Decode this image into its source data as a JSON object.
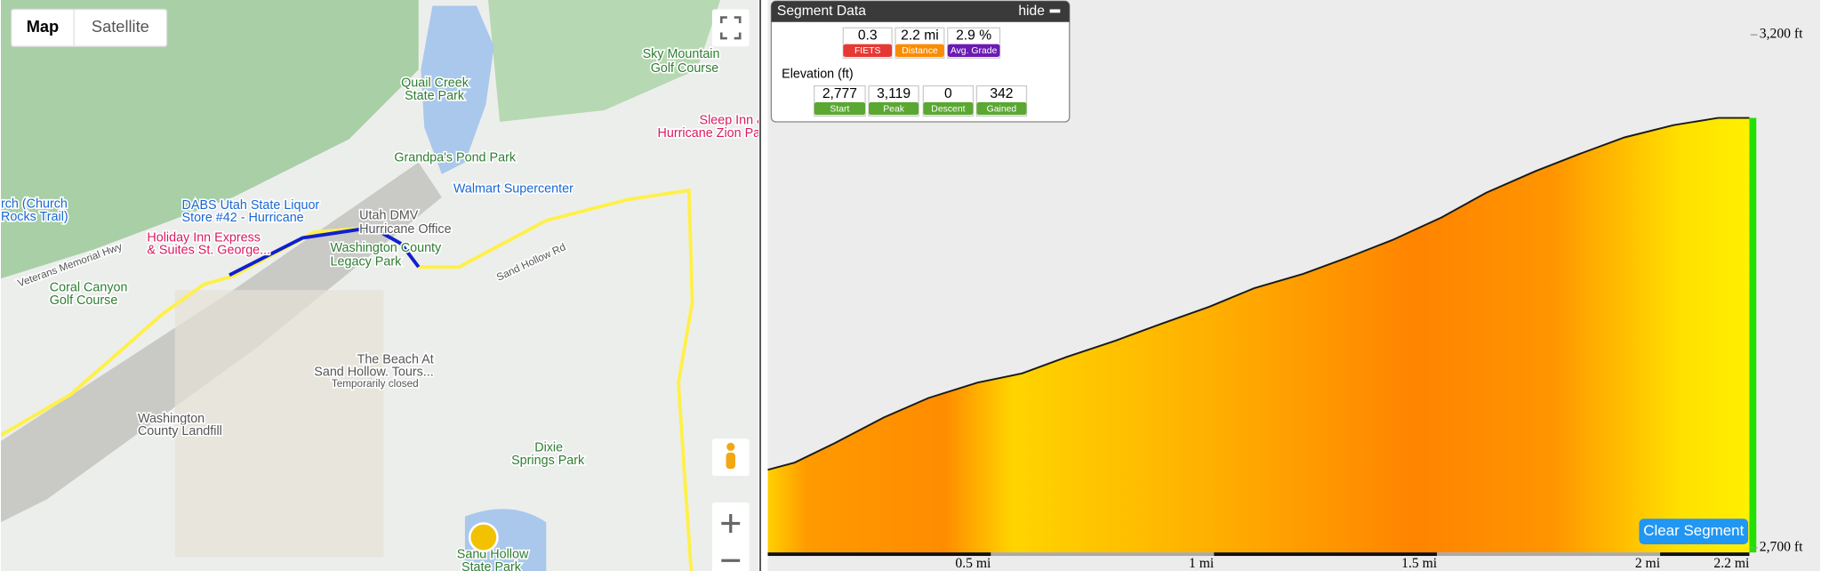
{
  "map": {
    "buttons": [
      "Map",
      "Satellite"
    ],
    "labels": [
      "Sky Mountain",
      "Golf Course",
      "Quail Creek",
      "State Park",
      "Sleep Inn &",
      "Hurricane Zion Pa",
      "Grandpa's Pond Park",
      "Walmart Supercenter",
      "rch (Church",
      "Rocks Trail)",
      "DABS Utah State Liquor",
      "Store #42 - Hurricane",
      "Utah DMV",
      "Hurricane Office",
      "Holiday Inn Express",
      "& Suites St. George...",
      "Washington County",
      "Legacy Park",
      "Coral Canyon",
      "Golf Course",
      "The Beach At",
      "Sand Hollow. Tours...",
      "Temporarily closed",
      "Washington",
      "County Landfill",
      "Dixie",
      "Springs Park",
      "Sand Hollow",
      "State Park",
      "Veterans Memorial Hwy",
      "Sand Hollow Rd"
    ]
  },
  "segment_panel": {
    "title": "Segment Data",
    "hide": "hide",
    "stats": [
      {
        "value": "0.3",
        "label": "FIETS"
      },
      {
        "value": "2.2 mi",
        "label": "Distance"
      },
      {
        "value": "2.9 %",
        "label": "Avg. Grade"
      }
    ],
    "elevation_title": "Elevation (ft)",
    "elevation": [
      {
        "value": "2,777",
        "label": "Start"
      },
      {
        "value": "3,119",
        "label": "Peak"
      },
      {
        "value": "0",
        "label": "Descent"
      },
      {
        "value": "342",
        "label": "Gained"
      }
    ]
  },
  "clear_button": "Clear Segment",
  "chart_data": {
    "type": "area",
    "x": [
      0,
      0.06,
      0.15,
      0.26,
      0.36,
      0.47,
      0.57,
      0.67,
      0.78,
      0.88,
      0.99,
      1.09,
      1.2,
      1.3,
      1.4,
      1.51,
      1.61,
      1.72,
      1.82,
      1.92,
      2.03,
      2.13,
      2.2
    ],
    "y": [
      2776,
      2783,
      2802,
      2827,
      2846,
      2861,
      2870,
      2886,
      2902,
      2918,
      2935,
      2953,
      2967,
      2983,
      3000,
      3022,
      3046,
      3067,
      3084,
      3100,
      3112,
      3119,
      3119
    ],
    "xlim": [
      0,
      2.2
    ],
    "ylim": [
      2700,
      3200
    ],
    "xticks": [
      {
        "value": 0.5,
        "label": "0.5 mi"
      },
      {
        "value": 1,
        "label": "1 mi"
      },
      {
        "value": 1.5,
        "label": "1.5 mi"
      },
      {
        "value": 2,
        "label": "2 mi"
      },
      {
        "value": 2.2,
        "label": "2.2 mi"
      }
    ],
    "yticks": [
      {
        "value": 2700,
        "label": "2,700 ft"
      },
      {
        "value": 3200,
        "label": "3,200 ft"
      }
    ],
    "color": "#1a1a1a"
  }
}
